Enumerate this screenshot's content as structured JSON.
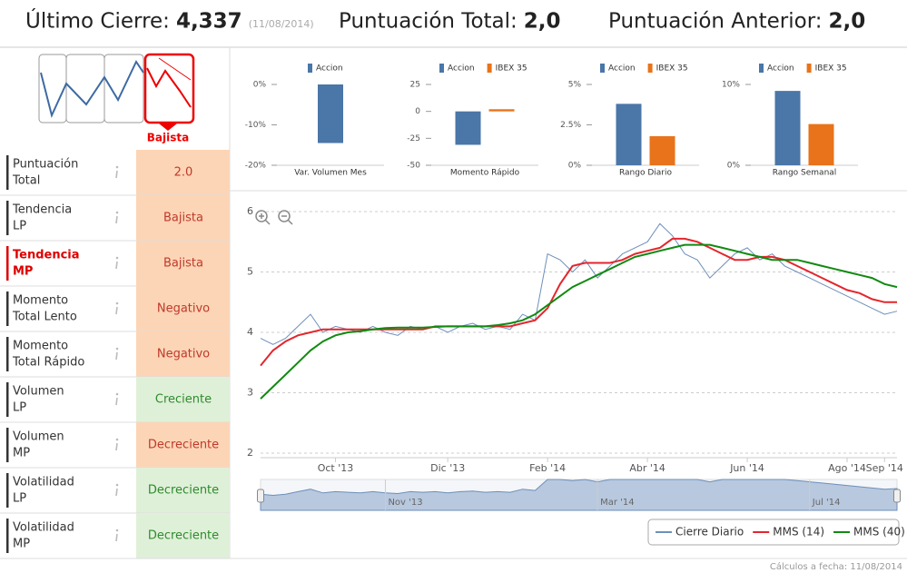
{
  "header": {
    "items": [
      {
        "label": "Último Cierre:",
        "value": "4,337",
        "date": "(11/08/2014)"
      },
      {
        "label": "Puntuación Total:",
        "value": "2,0"
      },
      {
        "label": "Puntuación Anterior:",
        "value": "2,0"
      }
    ]
  },
  "trend": {
    "label": "Bajista"
  },
  "table": {
    "rows": [
      {
        "name": [
          "Puntuación",
          "Total"
        ],
        "value": "2.0",
        "bg": "#fcd5b6",
        "color": "#c0392b"
      },
      {
        "name": [
          "Tendencia",
          "LP"
        ],
        "value": "Bajista",
        "bg": "#fcd5b6",
        "color": "#c0392b"
      },
      {
        "name": [
          "Tendencia",
          "MP"
        ],
        "value": "Bajista",
        "bg": "#fcd5b6",
        "color": "#c0392b",
        "highlight": true
      },
      {
        "name": [
          "Momento",
          "Total Lento"
        ],
        "value": "Negativo",
        "bg": "#fcd5b6",
        "color": "#c0392b"
      },
      {
        "name": [
          "Momento",
          "Total Rápido"
        ],
        "value": "Negativo",
        "bg": "#fcd5b6",
        "color": "#c0392b"
      },
      {
        "name": [
          "Volumen",
          "LP"
        ],
        "value": "Creciente",
        "bg": "#dff0d8",
        "color": "#2e8b2e"
      },
      {
        "name": [
          "Volumen",
          "MP"
        ],
        "value": "Decreciente",
        "bg": "#fcd5b6",
        "color": "#c0392b"
      },
      {
        "name": [
          "Volatilidad",
          "LP"
        ],
        "value": "Decreciente",
        "bg": "#dff0d8",
        "color": "#2e8b2e"
      },
      {
        "name": [
          "Volatilidad",
          "MP"
        ],
        "value": "Decreciente",
        "bg": "#dff0d8",
        "color": "#2e8b2e"
      }
    ]
  },
  "mini_charts": [
    {
      "type": "bar",
      "categories": [
        "Var. Volumen Mes"
      ],
      "series": [
        {
          "name": "Accion",
          "color": "#4a76a8",
          "values": [
            -14.5
          ]
        }
      ],
      "ylim": [
        -20,
        0
      ],
      "yticks": [
        {
          "value": 0,
          "label": "0%"
        },
        {
          "value": -10,
          "label": "-10%"
        },
        {
          "value": -20,
          "label": "-20%"
        }
      ]
    },
    {
      "type": "bar",
      "categories": [
        "Momento Rápido"
      ],
      "series": [
        {
          "name": "Accion",
          "color": "#4a76a8",
          "values": [
            -31
          ]
        },
        {
          "name": "IBEX 35",
          "color": "#e8731a",
          "values": [
            2
          ]
        }
      ],
      "ylim": [
        -50,
        25
      ],
      "yticks": [
        25,
        0,
        -25,
        -50
      ]
    },
    {
      "type": "bar",
      "categories": [
        "Rango Diario"
      ],
      "series": [
        {
          "name": "Accion",
          "color": "#4a76a8",
          "values": [
            3.8
          ]
        },
        {
          "name": "IBEX 35",
          "color": "#e8731a",
          "values": [
            1.8
          ]
        }
      ],
      "ylim": [
        0,
        5
      ],
      "yticks": [
        {
          "value": 5,
          "label": "5%"
        },
        {
          "value": 2.5,
          "label": "2.5%"
        },
        {
          "value": 0,
          "label": "0%"
        }
      ]
    },
    {
      "type": "bar",
      "categories": [
        "Rango Semanal"
      ],
      "series": [
        {
          "name": "Accion",
          "color": "#4a76a8",
          "values": [
            9.2
          ]
        },
        {
          "name": "IBEX 35",
          "color": "#e8731a",
          "values": [
            5.1
          ]
        }
      ],
      "ylim": [
        0,
        10
      ],
      "yticks": [
        {
          "value": 10,
          "label": "10%"
        },
        {
          "value": 0,
          "label": "0%"
        }
      ]
    }
  ],
  "main_chart": {
    "type": "line",
    "categories": [
      null,
      null,
      null,
      null,
      null,
      null,
      "Oct '13",
      null,
      null,
      null,
      null,
      null,
      null,
      null,
      null,
      "Dic '13",
      null,
      null,
      null,
      null,
      null,
      null,
      null,
      "Feb '14",
      null,
      null,
      null,
      null,
      null,
      null,
      null,
      "Abr '14",
      null,
      null,
      null,
      null,
      null,
      null,
      null,
      "Jun '14",
      null,
      null,
      null,
      null,
      null,
      null,
      null,
      "Ago '14",
      null,
      null,
      "Sep '14",
      null
    ],
    "series": [
      {
        "name": "Cierre Diario",
        "color": "#6d8fba",
        "values": [
          3.9,
          3.8,
          3.9,
          4.1,
          4.3,
          4.0,
          4.1,
          4.05,
          4.0,
          4.1,
          4.0,
          3.95,
          4.1,
          4.05,
          4.1,
          4.0,
          4.1,
          4.15,
          4.05,
          4.1,
          4.05,
          4.3,
          4.2,
          5.3,
          5.2,
          5.0,
          5.2,
          4.9,
          5.1,
          5.3,
          5.4,
          5.5,
          5.8,
          5.6,
          5.3,
          5.2,
          4.9,
          5.1,
          5.3,
          5.4,
          5.2,
          5.3,
          5.1,
          5.0,
          4.9,
          4.8,
          4.7,
          4.6,
          4.5,
          4.4,
          4.3,
          4.35
        ]
      },
      {
        "name": "MMS (14)",
        "color": "#e3262d",
        "values": [
          3.45,
          3.7,
          3.85,
          3.95,
          4.0,
          4.05,
          4.05,
          4.05,
          4.05,
          4.05,
          4.05,
          4.05,
          4.05,
          4.05,
          4.1,
          4.1,
          4.1,
          4.1,
          4.1,
          4.1,
          4.1,
          4.15,
          4.2,
          4.4,
          4.8,
          5.1,
          5.15,
          5.15,
          5.15,
          5.2,
          5.3,
          5.35,
          5.4,
          5.55,
          5.55,
          5.5,
          5.4,
          5.3,
          5.2,
          5.2,
          5.25,
          5.25,
          5.2,
          5.1,
          5.0,
          4.9,
          4.8,
          4.7,
          4.65,
          4.55,
          4.5,
          4.5
        ]
      },
      {
        "name": "MMS (40)",
        "color": "#118a11",
        "values": [
          2.9,
          3.1,
          3.3,
          3.5,
          3.7,
          3.85,
          3.95,
          4.0,
          4.02,
          4.05,
          4.07,
          4.08,
          4.08,
          4.08,
          4.09,
          4.1,
          4.1,
          4.1,
          4.1,
          4.12,
          4.15,
          4.2,
          4.3,
          4.45,
          4.6,
          4.75,
          4.85,
          4.95,
          5.05,
          5.15,
          5.25,
          5.3,
          5.35,
          5.4,
          5.45,
          5.45,
          5.45,
          5.4,
          5.35,
          5.3,
          5.25,
          5.2,
          5.2,
          5.2,
          5.15,
          5.1,
          5.05,
          5.0,
          4.95,
          4.9,
          4.8,
          4.75
        ]
      }
    ],
    "ylim": [
      2,
      6
    ],
    "yticks": [
      2,
      3,
      4,
      5,
      6
    ],
    "grid": true,
    "navigator": {
      "xticks": [
        {
          "value": 10,
          "label": "Nov '13"
        },
        {
          "value": 27,
          "label": "Mar '14"
        },
        {
          "value": 44,
          "label": "Jul '14"
        }
      ]
    }
  },
  "footer": "Cálculos a fecha: 11/08/2014"
}
